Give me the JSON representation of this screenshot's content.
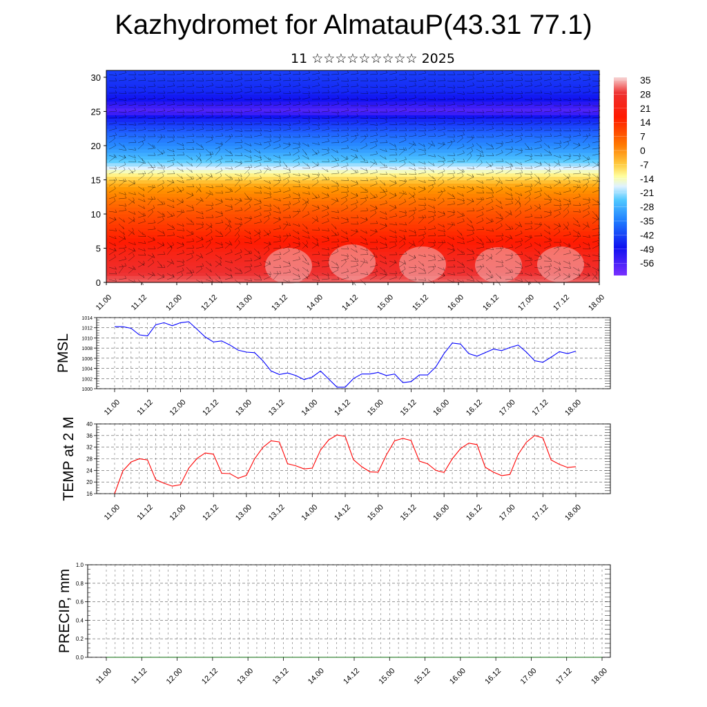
{
  "title": "Kazhydromet for AlmatauP(43.31 77.1)",
  "subtitle": "11 ☆☆☆☆☆☆☆☆☆ 2025",
  "chart_data": [
    {
      "type": "heatmap",
      "name": "temperature cross-section with wind barbs",
      "x_tick_labels": [
        "11.00",
        "11.12",
        "12.00",
        "12.12",
        "13.00",
        "13.12",
        "14.00",
        "14.12",
        "15.00",
        "15.12",
        "16.00",
        "16.12",
        "17.00",
        "17.12",
        "18.00"
      ],
      "y_ticks": [
        0,
        5,
        10,
        15,
        20,
        25,
        30
      ],
      "ylim": [
        0,
        31
      ],
      "colorbar_labels": [
        "35",
        "28",
        "21",
        "14",
        "7",
        "0",
        "-7",
        "-14",
        "-21",
        "-28",
        "-35",
        "-42",
        "-49",
        "-56"
      ],
      "colorbar_range": [
        -60,
        38
      ],
      "profile": {
        "heights": [
          0,
          2,
          4,
          6,
          8,
          10,
          12,
          14,
          15,
          16,
          17,
          18,
          20,
          22,
          24,
          25,
          26,
          28,
          31
        ],
        "temps": [
          34,
          31,
          28,
          24,
          19,
          14,
          9,
          3,
          -4,
          -10,
          -18,
          -25,
          -34,
          -44,
          -52,
          -58,
          -56,
          -51,
          -48
        ]
      }
    },
    {
      "type": "line",
      "ylabel": "PMSL",
      "ylim": [
        1000,
        1014
      ],
      "y_ticks": [
        1000,
        1002,
        1004,
        1006,
        1008,
        1010,
        1012,
        1014
      ],
      "x_tick_labels": [
        "11.00",
        "11.12",
        "12.00",
        "12.12",
        "13.00",
        "13.12",
        "14.00",
        "14.12",
        "15.00",
        "15.12",
        "16.00",
        "16.12",
        "17.00",
        "17.12",
        "18.00"
      ],
      "color": "#0000ff",
      "values": [
        1012.2,
        1012.2,
        1011.9,
        1010.6,
        1010.4,
        1012.6,
        1013.0,
        1012.4,
        1013.0,
        1013.2,
        1011.7,
        1010.2,
        1009.2,
        1009.4,
        1008.6,
        1007.6,
        1007.2,
        1007.1,
        1005.5,
        1003.5,
        1002.8,
        1003.1,
        1002.6,
        1001.8,
        1002.3,
        1003.5,
        1001.9,
        1000.3,
        1000.3,
        1002.0,
        1002.9,
        1002.9,
        1003.2,
        1002.6,
        1002.9,
        1001.2,
        1001.4,
        1002.7,
        1002.7,
        1004.3,
        1006.9,
        1009.0,
        1008.8,
        1006.9,
        1006.4,
        1007.1,
        1007.8,
        1007.5,
        1008.1,
        1008.6,
        1007.2,
        1005.5,
        1005.2,
        1006.2,
        1007.3,
        1006.9,
        1007.4
      ]
    },
    {
      "type": "line",
      "ylabel": "TEMP at 2 M",
      "ylim": [
        16,
        40
      ],
      "y_ticks": [
        16,
        20,
        24,
        28,
        32,
        36,
        40
      ],
      "x_tick_labels": [
        "11.00",
        "11.12",
        "12.00",
        "12.12",
        "13.00",
        "13.12",
        "14.00",
        "14.12",
        "15.00",
        "15.12",
        "16.00",
        "16.12",
        "17.00",
        "17.12",
        "18.00"
      ],
      "color": "#ff0000",
      "values": [
        16.0,
        23.8,
        26.9,
        28.0,
        27.6,
        20.8,
        19.6,
        18.6,
        19.1,
        24.8,
        28.1,
        30.0,
        29.6,
        23.0,
        22.9,
        21.3,
        22.3,
        28.0,
        31.9,
        34.2,
        33.8,
        26.3,
        25.6,
        24.5,
        24.8,
        31.0,
        34.5,
        36.2,
        35.7,
        27.7,
        25.3,
        23.5,
        23.4,
        29.3,
        34.2,
        35.0,
        34.3,
        27.2,
        26.3,
        24.0,
        23.3,
        28.0,
        31.5,
        33.4,
        32.9,
        25.1,
        23.4,
        22.2,
        22.6,
        29.5,
        33.7,
        36.0,
        35.2,
        27.6,
        26.1,
        25.0,
        25.3
      ]
    },
    {
      "type": "line",
      "ylabel": "PRECIP, mm",
      "ylim": [
        0.0,
        1.0
      ],
      "y_ticks": [
        "0.0",
        "0.2",
        "0.4",
        "0.6",
        "0.8",
        "1.0"
      ],
      "x_tick_labels": [
        "11.00",
        "11.12",
        "12.00",
        "12.12",
        "13.00",
        "13.12",
        "14.00",
        "14.12",
        "15.00",
        "15.12",
        "16.00",
        "16.12",
        "17.00",
        "17.12",
        "18.00"
      ],
      "color": "#006400",
      "values": [
        0,
        0,
        0,
        0,
        0,
        0,
        0,
        0,
        0,
        0,
        0,
        0,
        0,
        0,
        0,
        0,
        0,
        0,
        0,
        0,
        0,
        0,
        0,
        0,
        0,
        0,
        0,
        0,
        0,
        0,
        0,
        0,
        0,
        0,
        0,
        0,
        0,
        0,
        0,
        0,
        0,
        0,
        0,
        0,
        0,
        0,
        0,
        0,
        0,
        0,
        0,
        0,
        0,
        0,
        0,
        0,
        0
      ]
    }
  ]
}
